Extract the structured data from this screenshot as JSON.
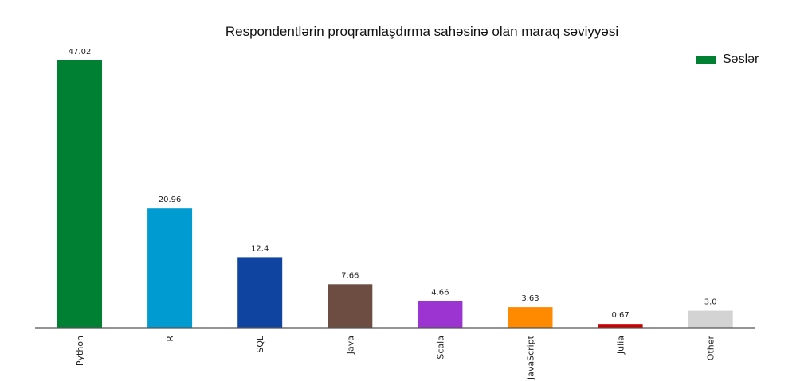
{
  "chart_data": {
    "type": "bar",
    "title": "Respondentlərin proqramlaşdırma sahəsinə olan maraq səviyyəsi",
    "xlabel": "",
    "ylabel": "",
    "categories": [
      "Python",
      "R",
      "SQL",
      "Java",
      "Scala",
      "JavaScript",
      "Julia",
      "Other"
    ],
    "series": [
      {
        "name": "Səslər",
        "values": [
          47.02,
          20.96,
          12.4,
          7.66,
          4.66,
          3.63,
          0.67,
          3.0
        ]
      }
    ],
    "value_labels": [
      "47.02",
      "20.96",
      "12.4",
      "7.66",
      "4.66",
      "3.63",
      "0.67",
      "3.0"
    ],
    "colors": [
      "#008033",
      "#009BD1",
      "#0F45A0",
      "#6D4C41",
      "#9B34D0",
      "#FF8A00",
      "#C80000",
      "#D3D3D3"
    ],
    "legend_color": "#008033",
    "ylim": [
      0,
      47.02
    ],
    "grid": false,
    "legend_position": "top-right",
    "y_axis_visible": false
  }
}
